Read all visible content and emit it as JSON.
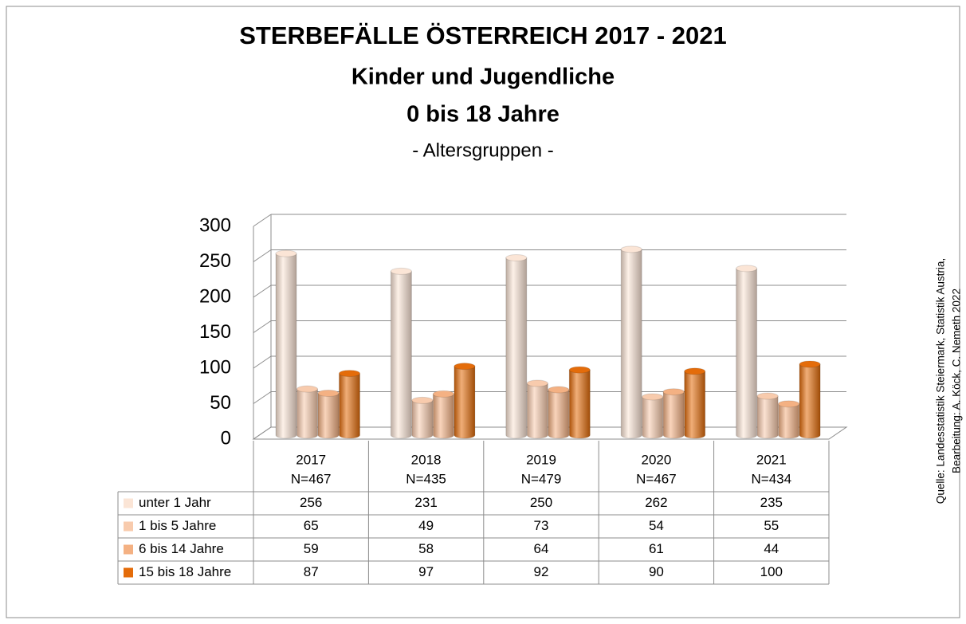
{
  "chart_data": {
    "type": "bar3d",
    "title": "STERBEFÄLLE ÖSTERREICH 2017 - 2021",
    "subtitle_lines": [
      "Kinder und Jugendliche",
      "0 bis 18 Jahre",
      "- Altersgruppen -"
    ],
    "source_lines": [
      "Quelle: Landesstatistik Steiermark, Statistik Austria,",
      "Bearbeitung: A. Köck, C. Nemeth 2022"
    ],
    "categories": [
      "2017",
      "2018",
      "2019",
      "2020",
      "2021"
    ],
    "category_sublabels": [
      "N=467",
      "N=435",
      "N=479",
      "N=467",
      "N=434"
    ],
    "series": [
      {
        "name": "unter 1 Jahr",
        "color": "#fbe5d6",
        "values": [
          256,
          231,
          250,
          262,
          235
        ]
      },
      {
        "name": "1 bis 5 Jahre",
        "color": "#f8cbad",
        "values": [
          65,
          49,
          73,
          54,
          55
        ]
      },
      {
        "name": "6 bis 14 Jahre",
        "color": "#f4b183",
        "values": [
          59,
          58,
          64,
          61,
          44
        ]
      },
      {
        "name": "15 bis 18 Jahre",
        "color": "#e46c0a",
        "values": [
          87,
          97,
          92,
          90,
          100
        ]
      }
    ],
    "ylim": [
      0,
      300
    ],
    "yticks": [
      0,
      50,
      100,
      150,
      200,
      250,
      300
    ],
    "grid": true,
    "data_table": true
  }
}
